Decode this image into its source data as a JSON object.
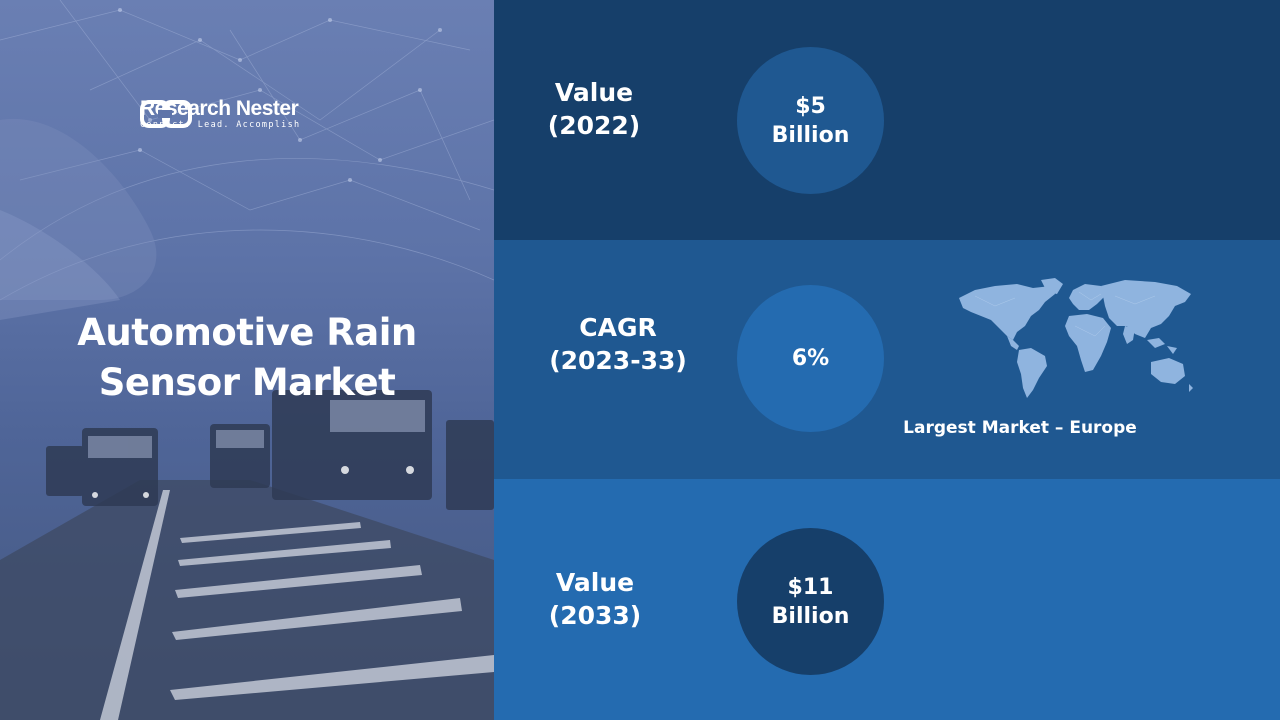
{
  "brand": {
    "name": "Research Nester",
    "tagline": "Connect. Lead. Accomplish"
  },
  "title": {
    "line1": "Automotive Rain",
    "line2": "Sensor Market"
  },
  "metrics": [
    {
      "label_line1": "Value",
      "label_line2": "(2022)",
      "value_line1": "$5",
      "value_line2": "Billion"
    },
    {
      "label_line1": "CAGR",
      "label_line2": "(2023-33)",
      "value_line1": "6%",
      "value_line2": ""
    },
    {
      "label_line1": "Value",
      "label_line2": "(2033)",
      "value_line1": "$11",
      "value_line2": "Billion"
    }
  ],
  "largest_market": "Largest Market – Europe",
  "colors": {
    "band_dark": "#163f6a",
    "band_mid": "#1f5891",
    "band_light": "#246bb0",
    "left_overlay": "#5d73a8"
  },
  "icons": [
    "logo-mark-icon",
    "world-map-icon"
  ]
}
